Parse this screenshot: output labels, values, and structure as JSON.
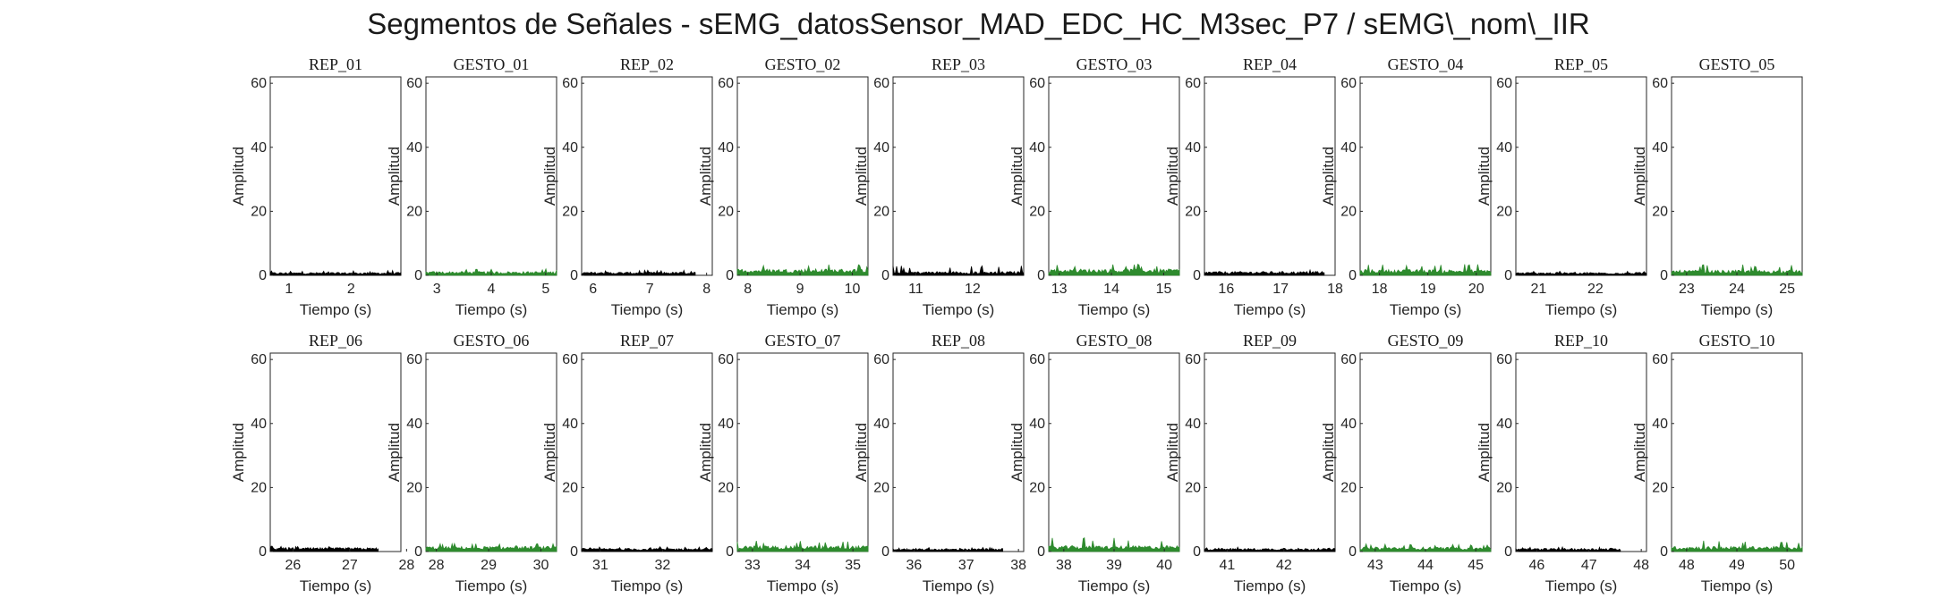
{
  "figure": {
    "title": "Segmentos de Señales - sEMG_datosSensor_MAD_EDC_HC_M3sec_P7 / sEMG\\_nom\\_IIR"
  },
  "colors": {
    "rep": "#000000",
    "gesto": "#2e8b2e",
    "axes": "#262626",
    "background": "#ffffff"
  },
  "chart_data": [
    {
      "type": "area",
      "title": "REP_01",
      "kind": "rep",
      "xlabel": "Tiempo (s)",
      "ylabel": "Amplitud",
      "xlim": [
        0.7,
        2.8
      ],
      "ylim": [
        0,
        62
      ],
      "xticks": [
        1,
        2
      ],
      "yticks": [
        0,
        20,
        40,
        60
      ],
      "x_range": [
        0.7,
        2.8
      ],
      "amplitude": [
        0.9,
        1.5
      ]
    },
    {
      "type": "area",
      "title": "GESTO_01",
      "kind": "gesto",
      "xlabel": "Tiempo (s)",
      "ylabel": "Amplitud",
      "xlim": [
        2.8,
        5.2
      ],
      "ylim": [
        0,
        62
      ],
      "xticks": [
        3,
        4,
        5
      ],
      "yticks": [
        0,
        20,
        40,
        60
      ],
      "x_range": [
        2.8,
        5.2
      ],
      "amplitude": [
        1.2,
        2.0
      ]
    },
    {
      "type": "area",
      "title": "REP_02",
      "kind": "rep",
      "xlabel": "Tiempo (s)",
      "ylabel": "Amplitud",
      "xlim": [
        5.8,
        8.1
      ],
      "ylim": [
        0,
        62
      ],
      "xticks": [
        6,
        7,
        8
      ],
      "yticks": [
        0,
        20,
        40,
        60
      ],
      "x_range": [
        5.8,
        7.8
      ],
      "amplitude": [
        1.0,
        1.6
      ]
    },
    {
      "type": "area",
      "title": "GESTO_02",
      "kind": "gesto",
      "xlabel": "Tiempo (s)",
      "ylabel": "Amplitud",
      "xlim": [
        7.8,
        10.3
      ],
      "ylim": [
        0,
        62
      ],
      "xticks": [
        8,
        9,
        10
      ],
      "yticks": [
        0,
        20,
        40,
        60
      ],
      "x_range": [
        7.8,
        10.3
      ],
      "amplitude": [
        2.0,
        3.5
      ]
    },
    {
      "type": "area",
      "title": "REP_03",
      "kind": "rep",
      "xlabel": "Tiempo (s)",
      "ylabel": "Amplitud",
      "xlim": [
        10.6,
        12.9
      ],
      "ylim": [
        0,
        62
      ],
      "xticks": [
        11,
        12
      ],
      "yticks": [
        0,
        20,
        40,
        60
      ],
      "x_range": [
        10.6,
        12.9
      ],
      "amplitude": [
        1.2,
        3.0
      ]
    },
    {
      "type": "area",
      "title": "GESTO_03",
      "kind": "gesto",
      "xlabel": "Tiempo (s)",
      "ylabel": "Amplitud",
      "xlim": [
        12.8,
        15.3
      ],
      "ylim": [
        0,
        62
      ],
      "xticks": [
        13,
        14,
        15
      ],
      "yticks": [
        0,
        20,
        40,
        60
      ],
      "x_range": [
        12.8,
        15.3
      ],
      "amplitude": [
        2.0,
        3.5
      ]
    },
    {
      "type": "area",
      "title": "REP_04",
      "kind": "rep",
      "xlabel": "Tiempo (s)",
      "ylabel": "Amplitud",
      "xlim": [
        15.6,
        18.0
      ],
      "ylim": [
        0,
        62
      ],
      "xticks": [
        16,
        17,
        18
      ],
      "yticks": [
        0,
        20,
        40,
        60
      ],
      "x_range": [
        15.6,
        17.8
      ],
      "amplitude": [
        1.2,
        1.8
      ]
    },
    {
      "type": "area",
      "title": "GESTO_04",
      "kind": "gesto",
      "xlabel": "Tiempo (s)",
      "ylabel": "Amplitud",
      "xlim": [
        17.6,
        20.3
      ],
      "ylim": [
        0,
        62
      ],
      "xticks": [
        18,
        19,
        20
      ],
      "yticks": [
        0,
        20,
        40,
        60
      ],
      "x_range": [
        17.6,
        20.3
      ],
      "amplitude": [
        1.8,
        3.5
      ]
    },
    {
      "type": "area",
      "title": "REP_05",
      "kind": "rep",
      "xlabel": "Tiempo (s)",
      "ylabel": "Amplitud",
      "xlim": [
        20.6,
        22.9
      ],
      "ylim": [
        0,
        62
      ],
      "xticks": [
        21,
        22
      ],
      "yticks": [
        0,
        20,
        40,
        60
      ],
      "x_range": [
        20.6,
        22.9
      ],
      "amplitude": [
        0.9,
        1.3
      ]
    },
    {
      "type": "area",
      "title": "GESTO_05",
      "kind": "gesto",
      "xlabel": "Tiempo (s)",
      "ylabel": "Amplitud",
      "xlim": [
        22.7,
        25.3
      ],
      "ylim": [
        0,
        62
      ],
      "xticks": [
        23,
        24,
        25
      ],
      "yticks": [
        0,
        20,
        40,
        60
      ],
      "x_range": [
        22.7,
        25.3
      ],
      "amplitude": [
        1.6,
        3.5
      ]
    },
    {
      "type": "area",
      "title": "REP_06",
      "kind": "rep",
      "xlabel": "Tiempo (s)",
      "ylabel": "Amplitud",
      "xlim": [
        25.6,
        27.9
      ],
      "ylim": [
        0,
        62
      ],
      "xticks": [
        26,
        27,
        28
      ],
      "yticks": [
        0,
        20,
        40,
        60
      ],
      "x_range": [
        25.6,
        27.5
      ],
      "amplitude": [
        1.2,
        1.8
      ]
    },
    {
      "type": "area",
      "title": "GESTO_06",
      "kind": "gesto",
      "xlabel": "Tiempo (s)",
      "ylabel": "Amplitud",
      "xlim": [
        27.8,
        30.3
      ],
      "ylim": [
        0,
        62
      ],
      "xticks": [
        28,
        29,
        30
      ],
      "yticks": [
        0,
        20,
        40,
        60
      ],
      "x_range": [
        27.8,
        30.3
      ],
      "amplitude": [
        1.6,
        2.5
      ]
    },
    {
      "type": "area",
      "title": "REP_07",
      "kind": "rep",
      "xlabel": "Tiempo (s)",
      "ylabel": "Amplitud",
      "xlim": [
        30.7,
        32.8
      ],
      "ylim": [
        0,
        62
      ],
      "xticks": [
        31,
        32
      ],
      "yticks": [
        0,
        20,
        40,
        60
      ],
      "x_range": [
        30.7,
        32.8
      ],
      "amplitude": [
        1.0,
        1.6
      ]
    },
    {
      "type": "area",
      "title": "GESTO_07",
      "kind": "gesto",
      "xlabel": "Tiempo (s)",
      "ylabel": "Amplitud",
      "xlim": [
        32.7,
        35.3
      ],
      "ylim": [
        0,
        62
      ],
      "xticks": [
        33,
        34,
        35
      ],
      "yticks": [
        0,
        20,
        40,
        60
      ],
      "x_range": [
        32.7,
        35.3
      ],
      "amplitude": [
        1.8,
        3.5
      ]
    },
    {
      "type": "area",
      "title": "REP_08",
      "kind": "rep",
      "xlabel": "Tiempo (s)",
      "ylabel": "Amplitud",
      "xlim": [
        35.6,
        38.1
      ],
      "ylim": [
        0,
        62
      ],
      "xticks": [
        36,
        37,
        38
      ],
      "yticks": [
        0,
        20,
        40,
        60
      ],
      "x_range": [
        35.6,
        37.7
      ],
      "amplitude": [
        0.9,
        1.3
      ]
    },
    {
      "type": "area",
      "title": "GESTO_08",
      "kind": "gesto",
      "xlabel": "Tiempo (s)",
      "ylabel": "Amplitud",
      "xlim": [
        37.7,
        40.3
      ],
      "ylim": [
        0,
        62
      ],
      "xticks": [
        38,
        39,
        40
      ],
      "yticks": [
        0,
        20,
        40,
        60
      ],
      "x_range": [
        37.7,
        40.3
      ],
      "amplitude": [
        1.8,
        4.5
      ]
    },
    {
      "type": "area",
      "title": "REP_09",
      "kind": "rep",
      "xlabel": "Tiempo (s)",
      "ylabel": "Amplitud",
      "xlim": [
        40.6,
        42.9
      ],
      "ylim": [
        0,
        62
      ],
      "xticks": [
        41,
        42
      ],
      "yticks": [
        0,
        20,
        40,
        60
      ],
      "x_range": [
        40.6,
        42.9
      ],
      "amplitude": [
        1.0,
        1.4
      ]
    },
    {
      "type": "area",
      "title": "GESTO_09",
      "kind": "gesto",
      "xlabel": "Tiempo (s)",
      "ylabel": "Amplitud",
      "xlim": [
        42.7,
        45.3
      ],
      "ylim": [
        0,
        62
      ],
      "xticks": [
        43,
        44,
        45
      ],
      "yticks": [
        0,
        20,
        40,
        60
      ],
      "x_range": [
        42.7,
        45.3
      ],
      "amplitude": [
        1.4,
        2.5
      ]
    },
    {
      "type": "area",
      "title": "REP_10",
      "kind": "rep",
      "xlabel": "Tiempo (s)",
      "ylabel": "Amplitud",
      "xlim": [
        45.6,
        48.1
      ],
      "ylim": [
        0,
        62
      ],
      "xticks": [
        46,
        47,
        48
      ],
      "yticks": [
        0,
        20,
        40,
        60
      ],
      "x_range": [
        45.6,
        47.6
      ],
      "amplitude": [
        1.0,
        1.4
      ]
    },
    {
      "type": "area",
      "title": "GESTO_10",
      "kind": "gesto",
      "xlabel": "Tiempo (s)",
      "ylabel": "Amplitud",
      "xlim": [
        47.7,
        50.3
      ],
      "ylim": [
        0,
        62
      ],
      "xticks": [
        48,
        49,
        50
      ],
      "yticks": [
        0,
        20,
        40,
        60
      ],
      "x_range": [
        47.7,
        50.3
      ],
      "amplitude": [
        1.6,
        3.5
      ]
    }
  ]
}
